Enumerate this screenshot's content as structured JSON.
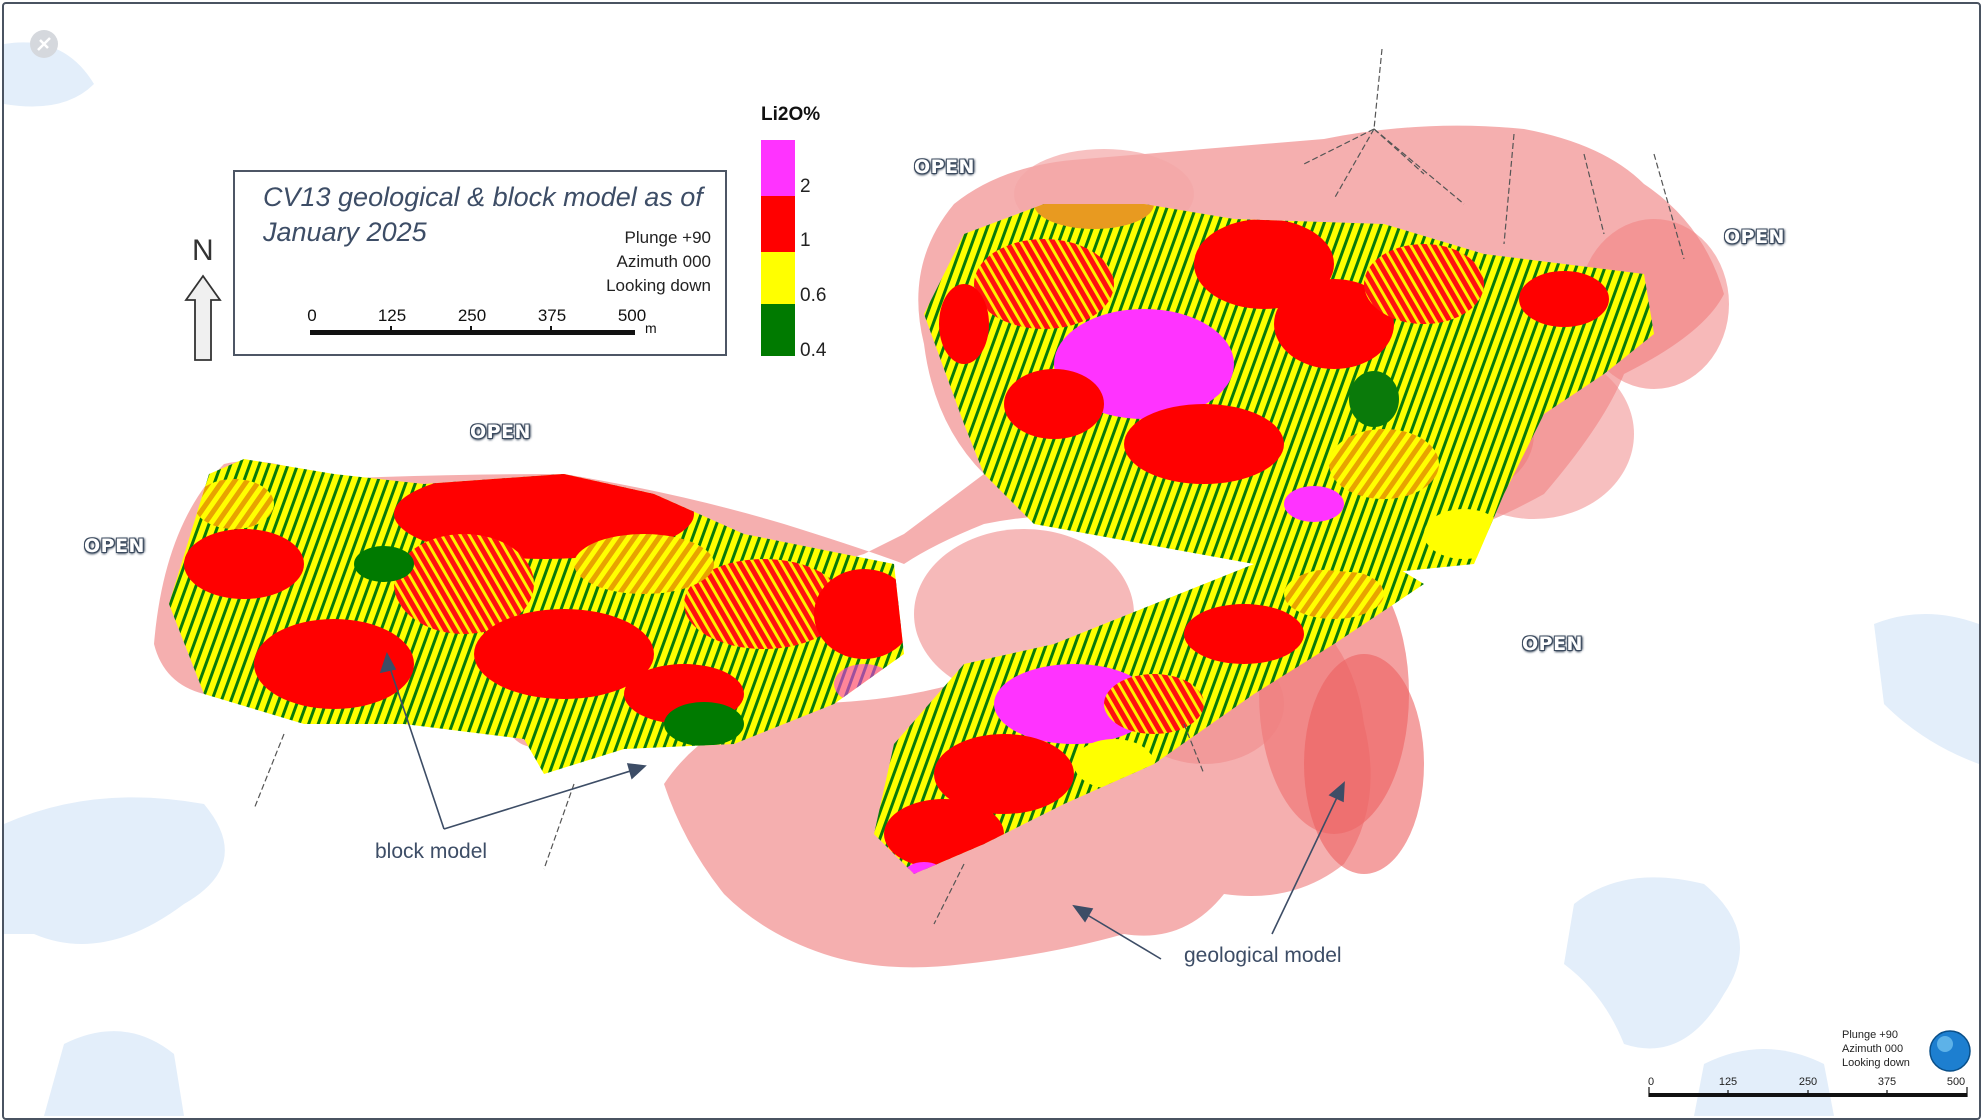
{
  "title": {
    "line1": "CV13 geological & block model as of",
    "line2": "January 2025"
  },
  "view": {
    "plunge": "Plunge +90",
    "azimuth": "Azimuth 000",
    "looking": "Looking down"
  },
  "scale": {
    "ticks": [
      "0",
      "125",
      "250",
      "375",
      "500"
    ],
    "unit": "m"
  },
  "north": {
    "label": "N"
  },
  "legend": {
    "title": "Li2O%",
    "bins": [
      {
        "label": "2",
        "color": "#ff33ff"
      },
      {
        "label": "1",
        "color": "#ff0000"
      },
      {
        "label": "0.6",
        "color": "#ffff00"
      },
      {
        "label": "0.4",
        "color": "#007a00"
      }
    ]
  },
  "open_labels": [
    "OPEN",
    "OPEN",
    "OPEN",
    "OPEN",
    "OPEN"
  ],
  "annotations": {
    "block_model": "block model",
    "geological_model": "geological model"
  },
  "bottom_right": {
    "plunge": "Plunge +90",
    "azimuth": "Azimuth 000",
    "looking": "Looking down",
    "ticks": [
      "0",
      "125",
      "250",
      "375",
      "500"
    ]
  },
  "colors": {
    "geo_model": "#f08080",
    "water": "#e3eefa",
    "frame": "#4a5361"
  }
}
